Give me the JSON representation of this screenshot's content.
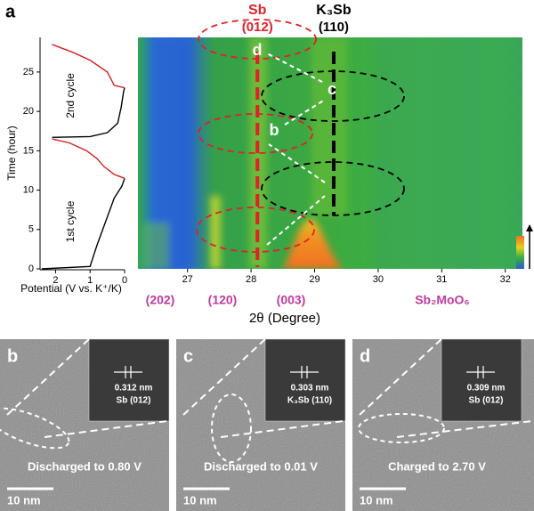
{
  "panel_label": "a",
  "chart_data": [
    {
      "type": "line",
      "x_label": "Potential (V vs. K⁺/K)",
      "y_label": "Time (hour)",
      "xlim": [
        2.45,
        0
      ],
      "ylim": [
        0,
        29.4
      ],
      "xticks": [
        2,
        1,
        0
      ],
      "yticks": [
        0,
        5,
        10,
        15,
        20,
        25
      ],
      "annotations": [
        "1st cycle",
        "2nd cycle"
      ],
      "series": [
        {
          "color": "#000000",
          "x": [
            2.4,
            1.0,
            0.95,
            0.8,
            0.55,
            0.3,
            0.08,
            0
          ],
          "values": [
            0,
            0.3,
            1,
            3,
            6,
            9,
            10.5,
            11.5
          ]
        },
        {
          "color": "#d42020",
          "x": [
            0,
            0.3,
            0.6,
            0.8,
            1.1,
            1.6,
            2.1
          ],
          "values": [
            11.5,
            12,
            13,
            14,
            15,
            16,
            16.5
          ]
        },
        {
          "color": "#000000",
          "x": [
            2.1,
            1.0,
            0.5,
            0.2,
            0.1,
            0.03,
            0
          ],
          "values": [
            16.7,
            16.8,
            17.3,
            18.5,
            20.5,
            22.5,
            23
          ]
        },
        {
          "color": "#d42020",
          "x": [
            0,
            0.3,
            0.5,
            1.0,
            1.5,
            2.1
          ],
          "values": [
            23,
            23.3,
            25,
            26.5,
            27.5,
            28.5
          ]
        }
      ]
    },
    {
      "type": "heatmap",
      "x_label": "2θ (Degree)",
      "xlim": [
        26.22,
        32.27
      ],
      "xticks": [
        27,
        28,
        29,
        30,
        31,
        32
      ],
      "peaks": [
        {
          "label": "Sb",
          "sublabel": "(012)",
          "x": 28.1,
          "color": "#e0202a"
        },
        {
          "label": "K₃Sb",
          "sublabel": "(110)",
          "x": 29.3,
          "color": "#000000"
        }
      ],
      "phase_labels": [
        "(202)",
        "(120)",
        "(003)",
        "Sb₂MoO₆"
      ],
      "markers": [
        "d",
        "c",
        "b"
      ]
    }
  ],
  "tem_panels": [
    {
      "label": "b",
      "caption": "Discharged to 0.80 V",
      "spacing": "0.312 nm",
      "phase": "Sb (012)",
      "scale_bar": "10 nm"
    },
    {
      "label": "c",
      "caption": "Discharged to 0.01 V",
      "spacing": "0.303 nm",
      "phase": "K₃Sb (110)",
      "scale_bar": "10 nm"
    },
    {
      "label": "d",
      "caption": "Charged to 2.70 V",
      "spacing": "0.309 nm",
      "phase": "Sb (012)",
      "scale_bar": "10 nm"
    }
  ]
}
